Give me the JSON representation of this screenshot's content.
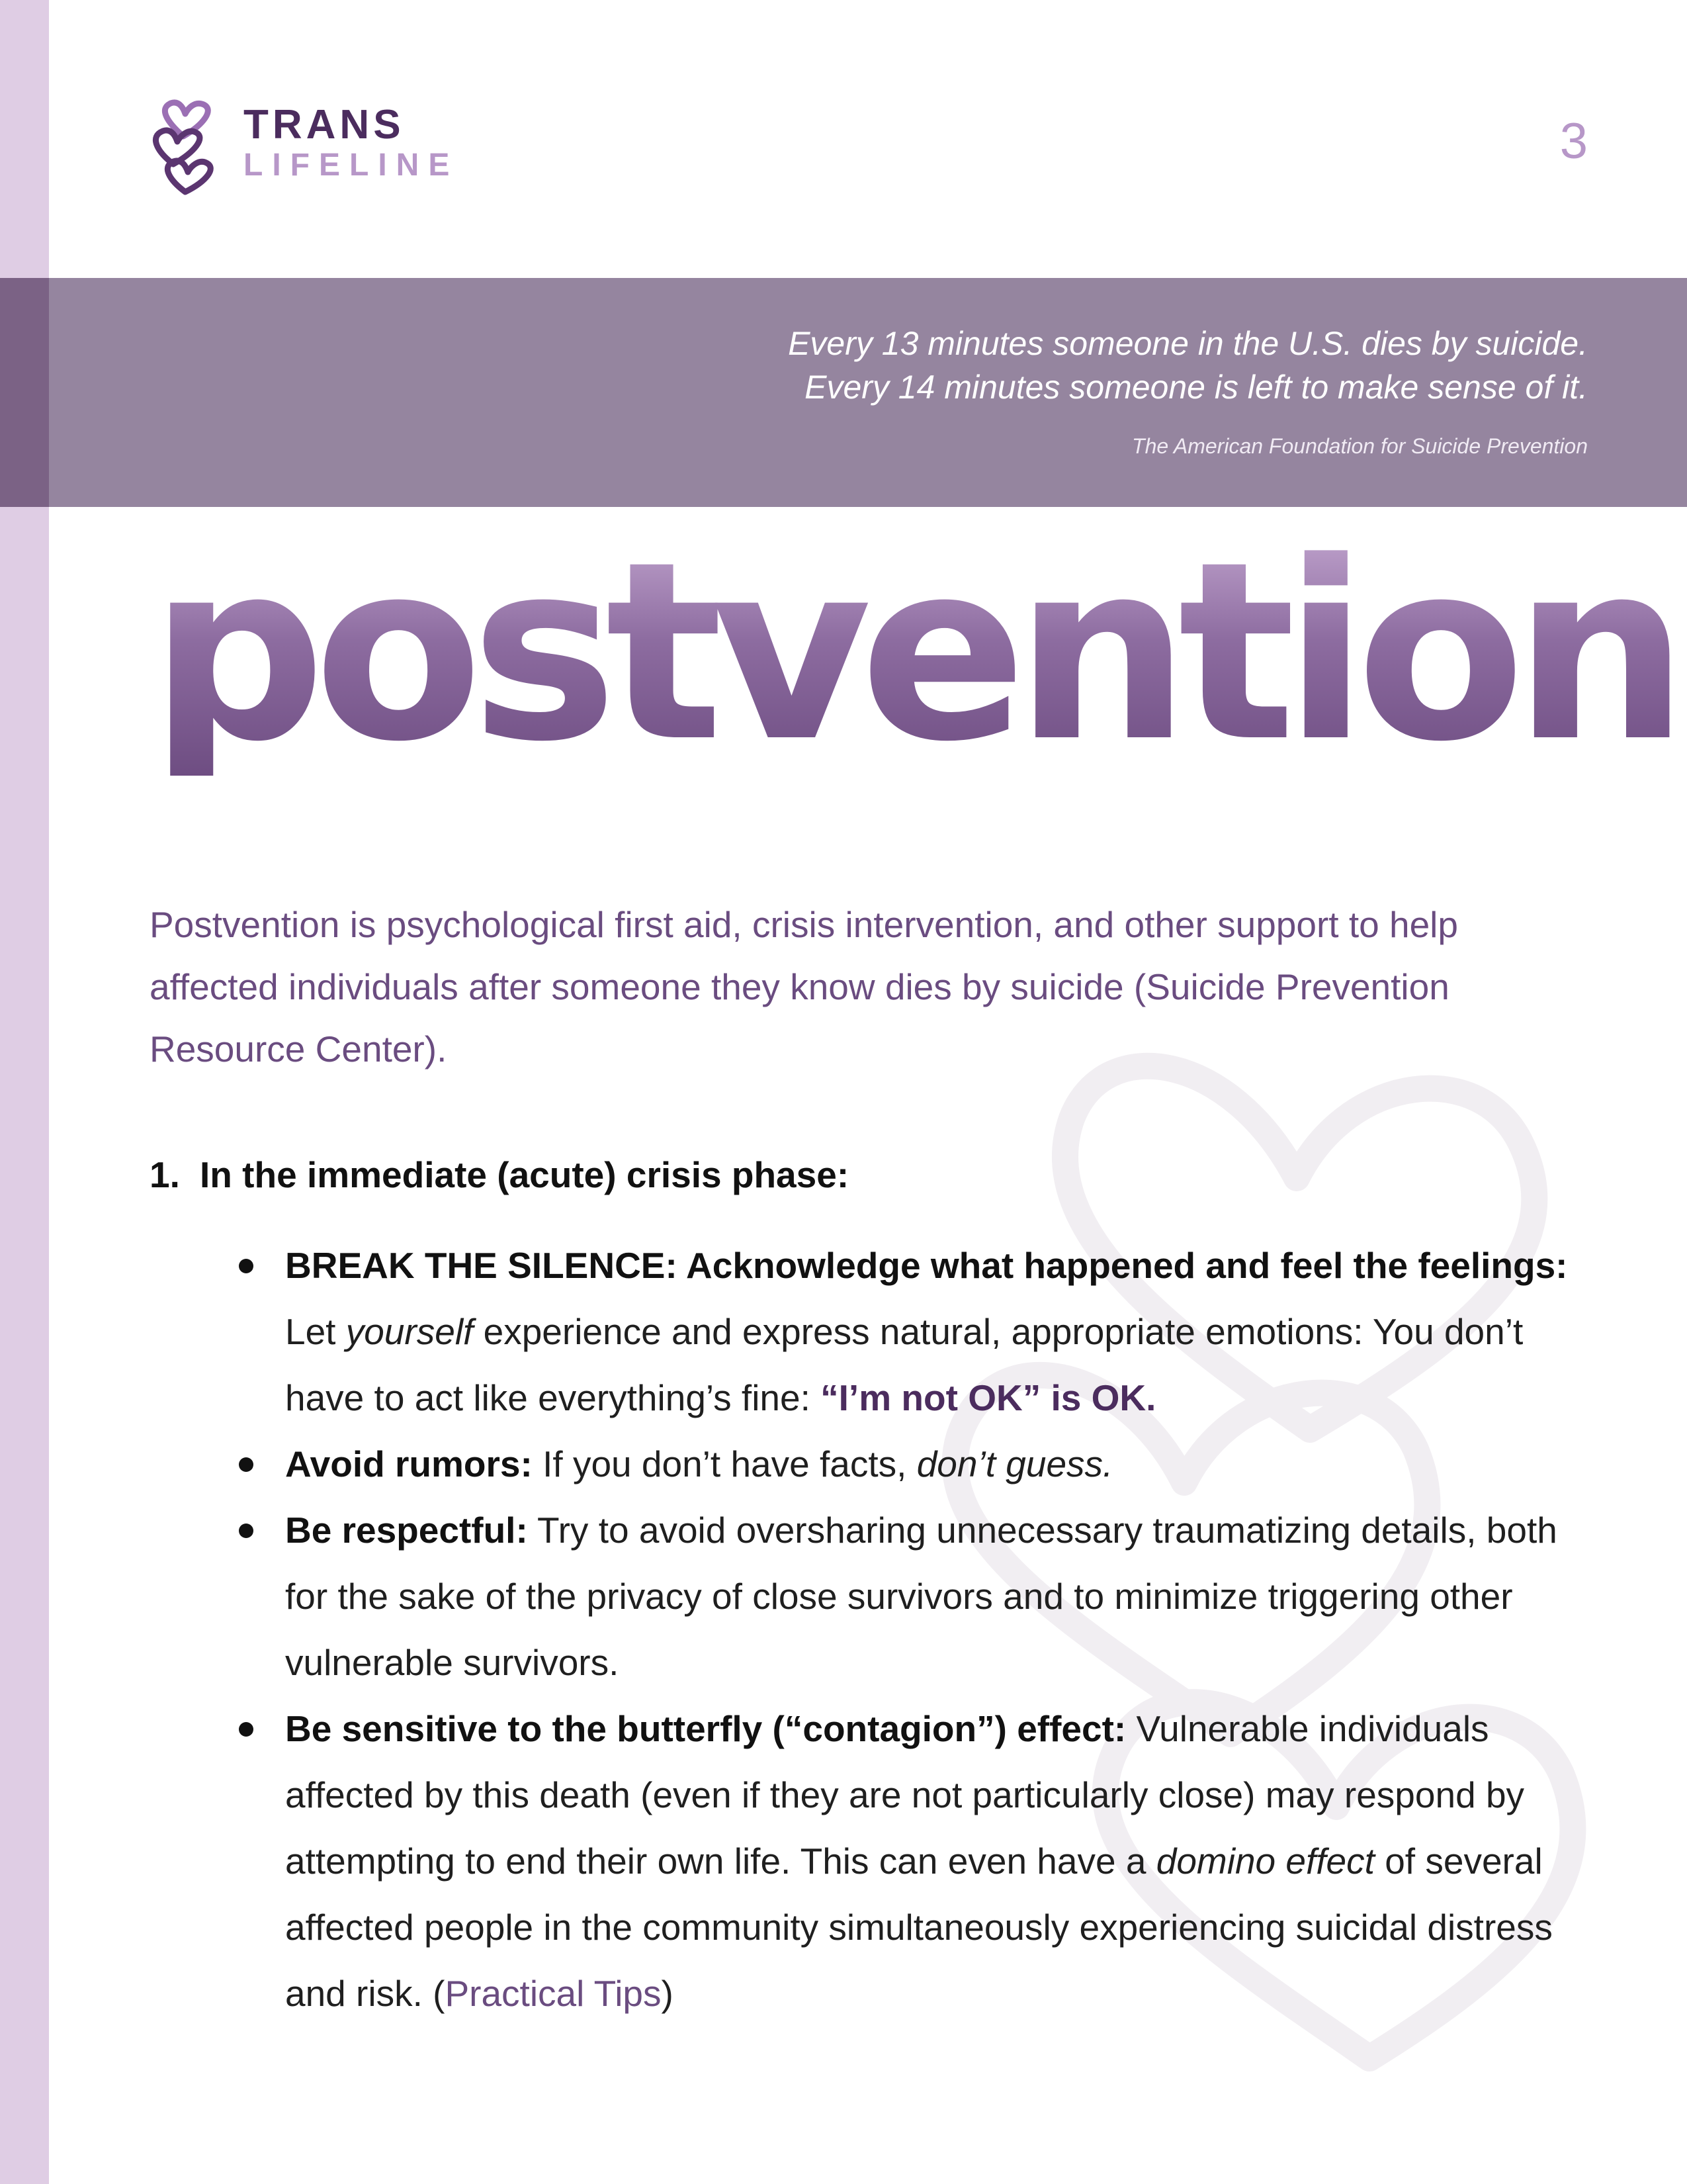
{
  "logo": {
    "line1": "TRANS",
    "line2": "LIFELINE",
    "icon": "hearts-logo-icon",
    "colors": {
      "dark": "#4b2c5e",
      "light": "#b797c8"
    }
  },
  "page_number": "3",
  "banner": {
    "quote_line1": "Every 13 minutes someone in the U.S. dies by suicide.",
    "quote_line2": "Every 14 minutes someone is left to make sense of it.",
    "source": "The American Foundation for Suicide Prevention",
    "color": "#95859f"
  },
  "title": "postvention",
  "intro": "Postvention is psychological first aid, crisis intervention, and other support to help affected individuals after someone they know dies by suicide (Suicide Prevention Resource Center).",
  "section": {
    "number": "1.",
    "heading": "In the immediate (acute) crisis phase:"
  },
  "bullets": [
    {
      "bold": "BREAK THE SILENCE: Acknowledge what happened and feel the feelings:",
      "text1": "Let ",
      "italic": "yourself",
      "text2": " experience and express natural, appropriate emotions: You don’t have to act like everything’s fine: ",
      "emphasis": "“I’m not OK” is OK."
    },
    {
      "bold": "Avoid rumors:",
      "text1": " If you don’t have facts, ",
      "italic": "don’t guess."
    },
    {
      "bold": "Be respectful:",
      "text1": " Try to avoid oversharing unnecessary traumatizing details, both for the sake of the privacy of close survivors and to minimize triggering other vulnerable survivors."
    },
    {
      "bold": "Be sensitive to the butterfly (“contagion”) effect:",
      "text1": " Vulnerable individuals affected by this death (even if they are not particularly close) may respond by attempting to end their own life. This can even have a ",
      "italic": "domino effect",
      "text2": " of several affected people in the community simultaneously experiencing suicidal distress and risk. (",
      "link": "Practical Tips",
      "text3": ")"
    }
  ],
  "background_icon": "hearts-watermark-icon"
}
